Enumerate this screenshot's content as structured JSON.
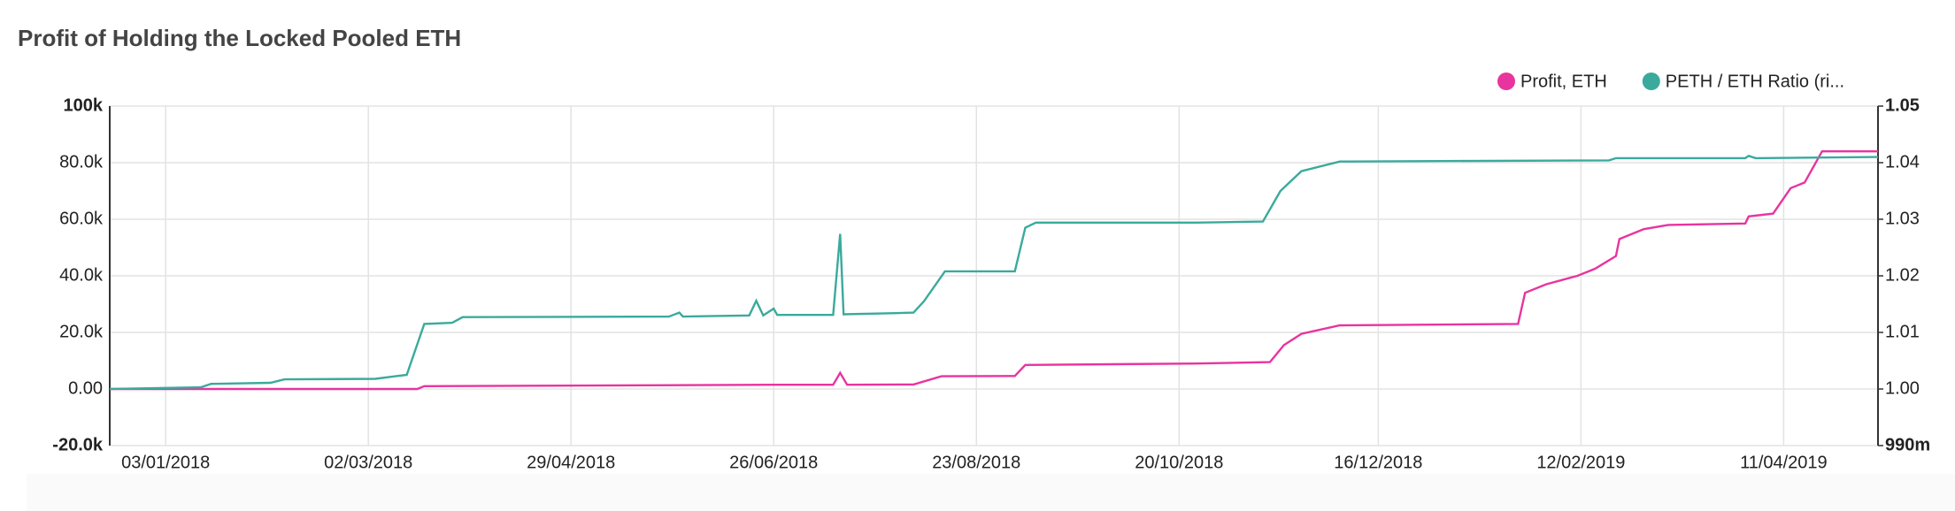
{
  "chart_data": {
    "type": "line",
    "title": "Profit of Holding the Locked Pooled ETH",
    "xlim": [
      "18/12/2017",
      "08/05/2019"
    ],
    "xticks": [
      "03/01/2018",
      "02/03/2018",
      "29/04/2018",
      "26/06/2018",
      "23/08/2018",
      "20/10/2018",
      "16/12/2018",
      "12/02/2019",
      "11/04/2019"
    ],
    "ylim": [
      -20000,
      100000
    ],
    "yticks": [
      {
        "value": -20000,
        "label": "-20.0k"
      },
      {
        "value": 0,
        "label": "0.00"
      },
      {
        "value": 20000,
        "label": "20.0k"
      },
      {
        "value": 40000,
        "label": "40.0k"
      },
      {
        "value": 60000,
        "label": "60.0k"
      },
      {
        "value": 80000,
        "label": "80.0k"
      },
      {
        "value": 100000,
        "label": "100k"
      }
    ],
    "y2lim": [
      0.99,
      1.05
    ],
    "y2ticks": [
      {
        "value": 0.99,
        "label": "990m"
      },
      {
        "value": 1,
        "label": "1.00"
      },
      {
        "value": 1.01,
        "label": "1.01"
      },
      {
        "value": 1.02,
        "label": "1.02"
      },
      {
        "value": 1.03,
        "label": "1.03"
      },
      {
        "value": 1.04,
        "label": "1.04"
      },
      {
        "value": 1.05,
        "label": "1.05"
      }
    ],
    "grid": true,
    "legend": "top-right",
    "series": [
      {
        "name": "Profit, ETH",
        "color": "#e8349e",
        "x": [
          "18/12/2017",
          "16/03/2018",
          "18/03/2018",
          "26/06/2018",
          "13/07/2018",
          "15/07/2018",
          "17/07/2018",
          "05/08/2018",
          "13/08/2018",
          "03/09/2018",
          "06/09/2018",
          "25/10/2018",
          "15/11/2018",
          "19/11/2018",
          "24/11/2018",
          "05/12/2018",
          "25/01/2019",
          "27/01/2019",
          "02/02/2019",
          "11/02/2019",
          "16/02/2019",
          "22/02/2019",
          "23/02/2019",
          "02/03/2019",
          "09/03/2019",
          "31/03/2019",
          "01/04/2019",
          "08/04/2019",
          "13/04/2019",
          "17/04/2019",
          "22/04/2019",
          "08/05/2019"
        ],
        "values": [
          0,
          0,
          1000,
          1500,
          1500,
          5700,
          1500,
          1600,
          4500,
          4600,
          8500,
          9000,
          9500,
          15500,
          19500,
          22500,
          23000,
          34000,
          37000,
          40000,
          42500,
          47000,
          53000,
          56500,
          58000,
          58500,
          61000,
          62000,
          71000,
          73000,
          84000,
          84000
        ]
      },
      {
        "name": "PETH / ETH Ratio (ri...",
        "color": "#3aaa9c",
        "axis": "y2",
        "x": [
          "18/12/2017",
          "13/01/2018",
          "16/01/2018",
          "02/02/2018",
          "06/02/2018",
          "04/03/2018",
          "09/03/2018",
          "13/03/2018",
          "18/03/2018",
          "26/03/2018",
          "29/03/2018",
          "27/05/2018",
          "30/05/2018",
          "31/05/2018",
          "19/06/2018",
          "21/06/2018",
          "23/06/2018",
          "26/06/2018",
          "27/06/2018",
          "13/07/2018",
          "15/07/2018",
          "16/07/2018",
          "31/07/2018",
          "05/08/2018",
          "08/08/2018",
          "14/08/2018",
          "03/09/2018",
          "06/09/2018",
          "09/09/2018",
          "25/10/2018",
          "13/11/2018",
          "18/11/2018",
          "24/11/2018",
          "05/12/2018",
          "20/02/2019",
          "22/02/2019",
          "31/03/2019",
          "01/04/2019",
          "03/04/2019",
          "08/05/2019"
        ],
        "values": [
          1.0,
          1.0003,
          1.0009,
          1.0011,
          1.0017,
          1.0018,
          1.0022,
          1.0025,
          1.0115,
          1.0117,
          1.0127,
          1.0128,
          1.0135,
          1.0128,
          1.013,
          1.0156,
          1.013,
          1.0142,
          1.0131,
          1.0131,
          1.0274,
          1.0132,
          1.0134,
          1.0135,
          1.0155,
          1.0208,
          1.0208,
          1.0285,
          1.0294,
          1.0294,
          1.0296,
          1.035,
          1.0385,
          1.0402,
          1.0404,
          1.0408,
          1.0408,
          1.0412,
          1.0408,
          1.041
        ]
      }
    ]
  }
}
